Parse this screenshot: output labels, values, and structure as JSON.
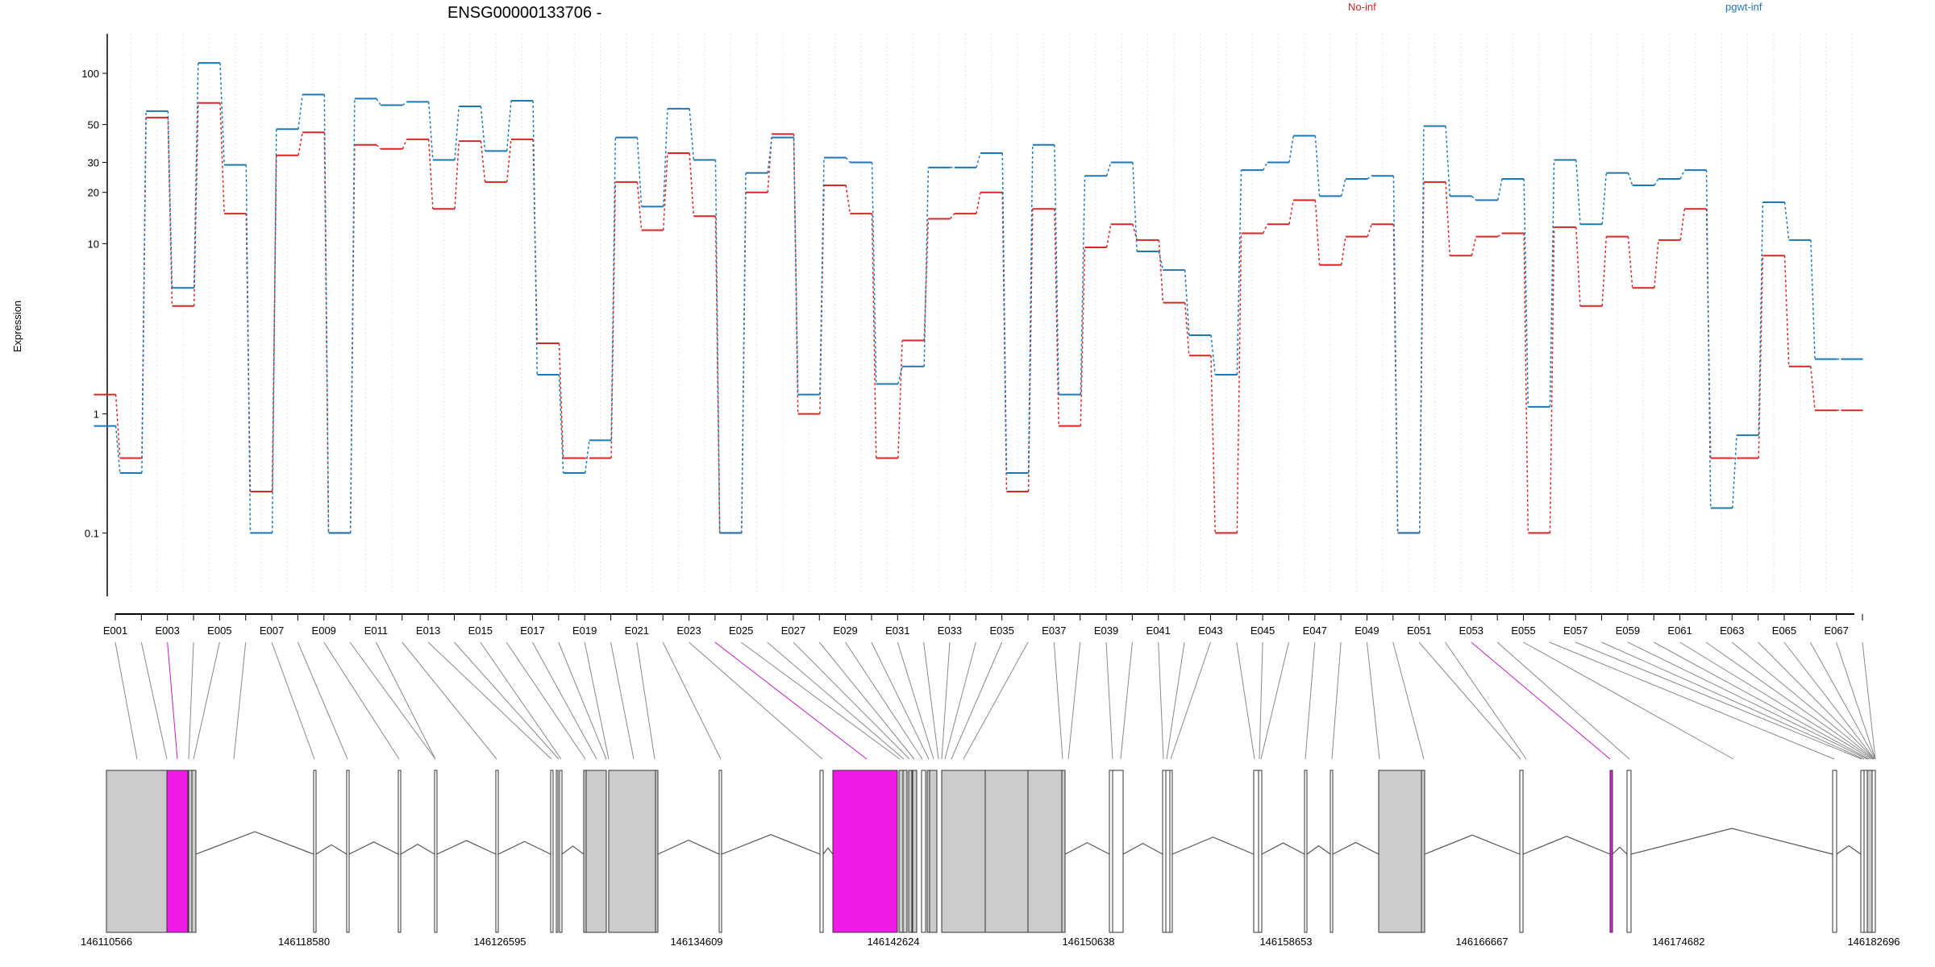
{
  "chart_data": {
    "type": "line",
    "title": "ENSG00000133706 -",
    "ylabel": "Expression",
    "y_scale": "log",
    "y_ticks": [
      0.1,
      1,
      10,
      20,
      30,
      50,
      100
    ],
    "y_tick_labels": [
      "0.1",
      "1",
      "10",
      "20",
      "30",
      "50",
      "100"
    ],
    "exons": [
      "E001",
      "E002",
      "E003",
      "E004",
      "E005",
      "E006",
      "E007",
      "E008",
      "E009",
      "E010",
      "E011",
      "E012",
      "E013",
      "E014",
      "E015",
      "E016",
      "E017",
      "E018",
      "E019",
      "E020",
      "E021",
      "E022",
      "E023",
      "E024",
      "E025",
      "E026",
      "E027",
      "E028",
      "E029",
      "E030",
      "E031",
      "E032",
      "E033",
      "E034",
      "E035",
      "E036",
      "E037",
      "E038",
      "E039",
      "E040",
      "E041",
      "E042",
      "E043",
      "E044",
      "E045",
      "E046",
      "E047",
      "E048",
      "E049",
      "E050",
      "E051",
      "E052",
      "E053",
      "E054",
      "E055",
      "E056",
      "E057",
      "E058",
      "E059",
      "E060",
      "E061",
      "E062",
      "E063",
      "E064",
      "E065",
      "E066",
      "E067",
      "E068"
    ],
    "exon_tick_labels": [
      "E001",
      "E003",
      "E005",
      "E007",
      "E009",
      "E011",
      "E013",
      "E015",
      "E017",
      "E019",
      "E021",
      "E023",
      "E025",
      "E027",
      "E029",
      "E031",
      "E033",
      "E035",
      "E037",
      "E039",
      "E041",
      "E043",
      "E045",
      "E047",
      "E049",
      "E051",
      "E053",
      "E055",
      "E057",
      "E059",
      "E061",
      "E063",
      "E065",
      "E067"
    ],
    "series": [
      {
        "name": "No-inf",
        "color": "#d62728",
        "style": "dashed",
        "values": [
          1.3,
          0.55,
          55,
          4.3,
          67,
          15,
          0.35,
          33,
          45,
          0.2,
          38,
          36,
          41,
          16,
          40,
          23,
          41,
          2.6,
          0.55,
          0.55,
          23,
          12,
          34,
          14.5,
          0.2,
          20,
          44,
          1.0,
          22,
          15,
          0.55,
          2.7,
          14,
          15,
          20,
          0.35,
          16,
          0.85,
          9.5,
          13,
          10.5,
          4.5,
          2.2,
          0.2,
          11.5,
          13,
          18,
          7.5,
          11,
          13,
          0.2,
          23,
          8.5,
          11,
          11.5,
          0.2,
          12.5,
          4.3,
          11,
          5.5,
          10.5,
          16,
          0.55,
          0.55,
          8.5,
          1.9,
          1.05,
          1.05
        ]
      },
      {
        "name": "pgwt-inf",
        "color": "#1f77b4",
        "style": "dashed",
        "values": [
          0.85,
          0.45,
          60,
          5.5,
          115,
          29,
          0.2,
          47,
          75,
          0.2,
          71,
          65,
          68,
          31,
          64,
          35,
          69,
          1.7,
          0.45,
          0.7,
          42,
          16.5,
          62,
          31,
          0.2,
          26,
          42,
          1.3,
          32,
          30,
          1.5,
          1.9,
          28,
          28,
          34,
          0.45,
          38,
          1.3,
          25,
          30,
          9,
          7,
          2.9,
          1.7,
          27,
          30,
          43,
          19,
          24,
          25,
          0.2,
          49,
          19,
          18,
          24,
          1.1,
          31,
          13,
          26,
          22,
          24,
          27,
          0.28,
          0.75,
          17.5,
          10.5,
          2.1,
          2.1
        ]
      }
    ],
    "genomic_coordinates": [
      "146110566",
      "146118580",
      "146126595",
      "146134609",
      "146142624",
      "146150638",
      "146158653",
      "146166667",
      "146174682",
      "146182696"
    ]
  },
  "colors": {
    "no_inf": "#d62728",
    "pgwt_inf": "#1f77b4",
    "highlight_exon": "#f01ae6",
    "exon_fill": "#cccccc"
  }
}
